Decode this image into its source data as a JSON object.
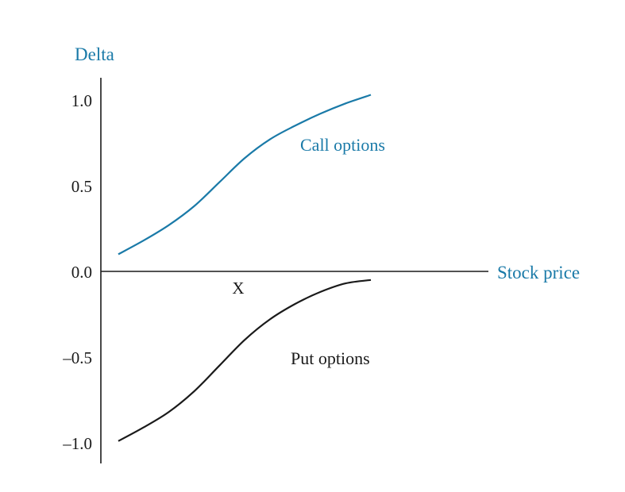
{
  "chart_data": {
    "type": "line",
    "ylabel": "Delta",
    "xlabel": "Stock price",
    "x_marker_label": "X",
    "yticks": [
      "1.0",
      "0.5",
      "0.0",
      "–0.5",
      "–1.0"
    ],
    "ylim": [
      -1.1,
      1.1
    ],
    "xlim": [
      0,
      1
    ],
    "grid": false,
    "series": [
      {
        "name": "Call options",
        "color": "#1a7aa8",
        "x": [
          0.0,
          0.1,
          0.2,
          0.3,
          0.4,
          0.5,
          0.6,
          0.7,
          0.8,
          0.9,
          1.0
        ],
        "y": [
          0.1,
          0.18,
          0.27,
          0.38,
          0.52,
          0.66,
          0.77,
          0.85,
          0.92,
          0.98,
          1.03
        ]
      },
      {
        "name": "Put options",
        "color": "#1a1a1a",
        "x": [
          0.0,
          0.1,
          0.2,
          0.3,
          0.4,
          0.5,
          0.6,
          0.7,
          0.8,
          0.9,
          1.0
        ],
        "y": [
          -0.99,
          -0.91,
          -0.82,
          -0.7,
          -0.55,
          -0.4,
          -0.28,
          -0.19,
          -0.12,
          -0.07,
          -0.05
        ]
      }
    ]
  }
}
